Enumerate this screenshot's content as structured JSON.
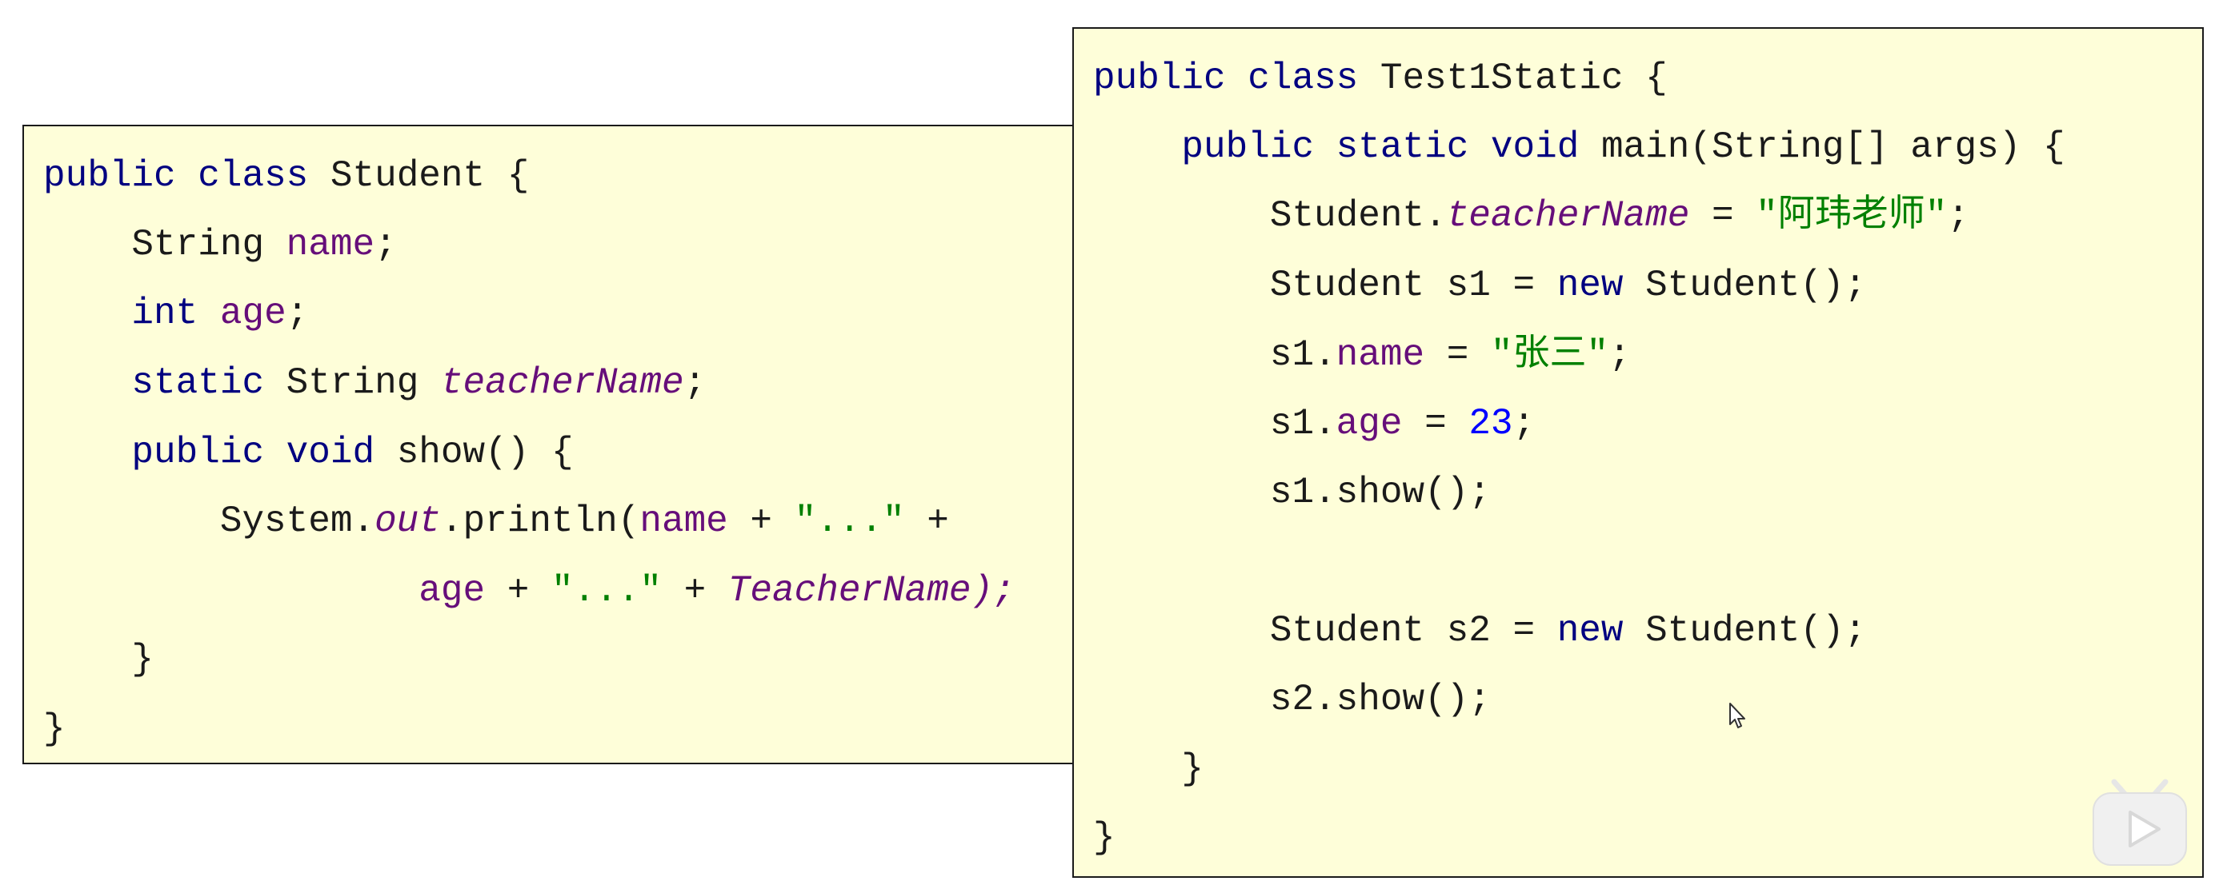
{
  "student_class": {
    "line1": {
      "kw_public": "public",
      "kw_class": "class",
      "name": "Student",
      "brace": "{"
    },
    "line2": {
      "type": "String",
      "field": "name",
      "semi": ";"
    },
    "line3": {
      "type": "int",
      "field": "age",
      "semi": ";"
    },
    "line4": {
      "kw_static": "static",
      "type": "String",
      "field": "teacherName",
      "semi": ";"
    },
    "line5": {
      "kw_public": "public",
      "kw_void": "void",
      "method": "show()",
      "brace": "{"
    },
    "line6": {
      "system": "System.",
      "out": "out",
      "println": ".println(",
      "field": "name",
      "plus1": " + ",
      "str": "\"...\"",
      "plus2": " +"
    },
    "line7": {
      "field": "age",
      "plus1": " + ",
      "str": "\"...\"",
      "plus2": " + ",
      "static_field": "TeacherName);"
    },
    "line8": {
      "brace": "}"
    },
    "line9": {
      "brace": "}"
    }
  },
  "test_class": {
    "line1": {
      "kw_public": "public",
      "kw_class": "class",
      "name": "Test1Static",
      "brace": "{"
    },
    "line2": {
      "kw_public": "public",
      "kw_static": "static",
      "kw_void": "void",
      "rest": "main(String[] args) {"
    },
    "line3": {
      "cls": "Student.",
      "static_field": "teacherName",
      "eq": " = ",
      "str": "\"阿玮老师\"",
      "semi": ";"
    },
    "line4": {
      "decl": "Student s1 = ",
      "kw_new": "new",
      "rest": " Student();"
    },
    "line5": {
      "obj": "s1.",
      "field": "name",
      "eq": " = ",
      "str": "\"张三\"",
      "semi": ";"
    },
    "line6": {
      "obj": "s1.",
      "field": "age",
      "eq": " = ",
      "num": "23",
      "semi": ";"
    },
    "line7": {
      "call": "s1.show();"
    },
    "line8": {
      "decl": "Student s2 = ",
      "kw_new": "new",
      "rest": " Student();"
    },
    "line9": {
      "call": "s2.show();"
    },
    "line10": {
      "brace": "}"
    },
    "line11": {
      "brace": "}"
    }
  },
  "icons": {
    "cursor": "mouse-pointer-icon",
    "player": "bilibili-play-icon"
  },
  "colors": {
    "panel_bg": "#fefed9",
    "keyword": "#000080",
    "field": "#660e7a",
    "string": "#008000",
    "number": "#0000ff"
  }
}
